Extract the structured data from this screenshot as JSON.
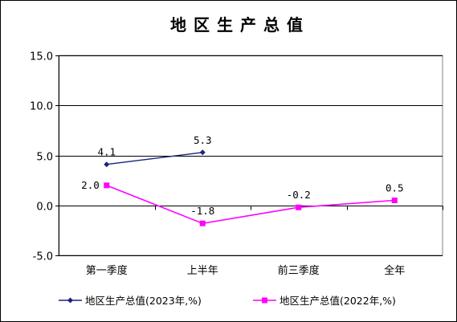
{
  "chart_data": {
    "type": "line",
    "title": "地区生产总值",
    "categories": [
      "第一季度",
      "上半年",
      "前三季度",
      "全年"
    ],
    "ylim": [
      -5.0,
      15.0
    ],
    "yticks": [
      "15.0",
      "10.0",
      "5.0",
      "0.0",
      "-5.0"
    ],
    "ytick_values": [
      15,
      10,
      5,
      0,
      -5
    ],
    "grid": true,
    "legend_position": "bottom",
    "series": [
      {
        "name": "地区生产总值(2023年,%)",
        "values": [
          4.1,
          5.3,
          null,
          null
        ],
        "labels": [
          "4.1",
          "5.3",
          "",
          ""
        ],
        "color": "#1a237e",
        "marker": "diamond"
      },
      {
        "name": "地区生产总值(2022年,%)",
        "values": [
          2.0,
          -1.8,
          -0.2,
          0.5
        ],
        "labels": [
          "2.0",
          "-1.8",
          "-0.2",
          "0.5"
        ],
        "color": "#ff00ff",
        "marker": "square"
      }
    ]
  }
}
